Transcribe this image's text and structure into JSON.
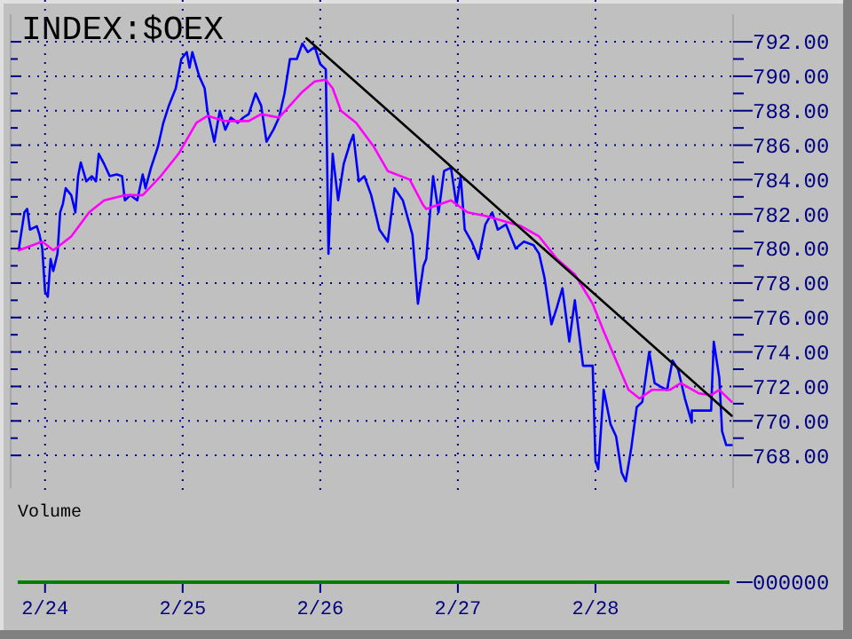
{
  "chart_data": [
    {
      "type": "line",
      "title": "INDEX:$OEX",
      "xlim": [
        "--02-23T18:00",
        "--03-01"
      ],
      "ylim": [
        766.1,
        793.6
      ],
      "xticks": [
        {
          "value": "--02-24",
          "label": "2/24"
        },
        {
          "value": "--02-25",
          "label": "2/25"
        },
        {
          "value": "--02-26",
          "label": "2/26"
        },
        {
          "value": "--02-27",
          "label": "2/27"
        },
        {
          "value": "--02-28",
          "label": "2/28"
        }
      ],
      "yticks": [
        {
          "value": 768,
          "label": "768.00"
        },
        {
          "value": 769,
          "label": null
        },
        {
          "value": 770,
          "label": "770.00"
        },
        {
          "value": 771,
          "label": null
        },
        {
          "value": 772,
          "label": "772.00"
        },
        {
          "value": 773,
          "label": null
        },
        {
          "value": 774,
          "label": "774.00"
        },
        {
          "value": 775,
          "label": null
        },
        {
          "value": 776,
          "label": "776.00"
        },
        {
          "value": 777,
          "label": null
        },
        {
          "value": 778,
          "label": "778.00"
        },
        {
          "value": 779,
          "label": null
        },
        {
          "value": 780,
          "label": "780.00"
        },
        {
          "value": 781,
          "label": null
        },
        {
          "value": 782,
          "label": "782.00"
        },
        {
          "value": 783,
          "label": null
        },
        {
          "value": 784,
          "label": "784.00"
        },
        {
          "value": 785,
          "label": null
        },
        {
          "value": 786,
          "label": "786.00"
        },
        {
          "value": 787,
          "label": null
        },
        {
          "value": 788,
          "label": "788.00"
        },
        {
          "value": 789,
          "label": null
        },
        {
          "value": 790,
          "label": "790.00"
        },
        {
          "value": 791,
          "label": null
        },
        {
          "value": 792,
          "label": "792.00"
        }
      ],
      "grid": true,
      "series": [
        {
          "type": "line",
          "color": "#0000ff",
          "x": [
            "--02-23T19:26",
            "--02-23T20:24",
            "--02-23T20:53",
            "--02-23T21:22",
            "--02-23T22:34",
            "--02-23T23:02",
            "--02-23T23:31",
            "--02-24T00:00",
            "--02-24T00:29",
            "--02-24T00:58",
            "--02-24T01:26",
            "--02-24T02:10",
            "--02-24T02:38",
            "--02-24T03:07",
            "--02-24T03:36",
            "--02-24T04:34",
            "--02-24T05:17",
            "--02-24T05:46",
            "--02-24T06:14",
            "--02-24T07:12",
            "--02-24T08:10",
            "--02-24T08:53",
            "--02-24T09:22",
            "--02-24T10:19",
            "--02-24T11:17",
            "--02-24T12:29",
            "--02-24T13:26",
            "--02-24T13:55",
            "--02-24T14:53",
            "--02-24T16:05",
            "--02-24T17:02",
            "--02-24T17:31",
            "--02-24T18:29",
            "--02-24T19:41",
            "--02-24T20:38",
            "--02-24T21:36",
            "--02-24T22:48",
            "--02-24T23:46",
            "--02-25T00:43",
            "--02-25T01:12",
            "--02-25T01:41",
            "--02-25T02:53",
            "--02-25T03:50",
            "--02-25T04:19",
            "--02-25T05:31",
            "--02-25T06:29",
            "--02-25T07:26",
            "--02-25T08:24",
            "--02-25T09:36",
            "--02-25T10:34",
            "--02-25T11:31",
            "--02-25T12:43",
            "--02-25T13:41",
            "--02-25T14:38",
            "--02-25T15:50",
            "--02-25T16:48",
            "--02-25T17:46",
            "--02-25T18:43",
            "--02-25T19:55",
            "--02-25T20:53",
            "--02-25T21:50",
            "--02-25T23:02",
            "--02-26T00:00",
            "--02-26T00:58",
            "--02-26T01:26",
            "--02-26T02:10",
            "--02-26T03:07",
            "--02-26T04:05",
            "--02-26T05:17",
            "--02-26T05:46",
            "--02-26T06:43",
            "--02-26T07:41",
            "--02-26T08:53",
            "--02-26T10:19",
            "--02-26T11:46",
            "--02-26T12:58",
            "--02-26T14:24",
            "--02-26T16:05",
            "--02-26T17:02",
            "--02-26T18:00",
            "--02-26T18:29",
            "--02-26T19:41",
            "--02-26T20:38",
            "--02-26T21:36",
            "--02-26T22:48",
            "--02-26T23:46",
            "--02-27T00:29",
            "--02-27T01:12",
            "--02-27T02:24",
            "--02-27T03:36",
            "--02-27T04:48",
            "--02-27T06:00",
            "--02-27T06:58",
            "--02-27T08:24",
            "--02-27T10:05",
            "--02-27T11:31",
            "--02-27T13:12",
            "--02-27T14:10",
            "--02-27T15:07",
            "--02-27T16:19",
            "--02-27T17:17",
            "--02-27T18:14",
            "--02-27T19:26",
            "--02-27T20:24",
            "--02-27T21:50",
            "--02-27T23:31",
            "--02-28T00:00",
            "--02-28T00:29",
            "--02-28T01:26",
            "--02-28T02:38",
            "--02-28T03:36",
            "--02-28T04:34",
            "--02-28T05:17",
            "--02-28T06:14",
            "--02-28T07:12",
            "--02-28T08:10",
            "--02-28T09:22",
            "--02-28T10:19",
            "--02-28T11:17",
            "--02-28T12:29",
            "--02-28T13:26",
            "--02-28T14:24",
            "--02-28T15:36",
            "--02-28T16:48",
            "--02-28T16:48",
            "--02-28T20:10",
            "--02-28T20:38",
            "--02-28T21:36",
            "--02-28T22:05",
            "--02-28T22:48",
            "--02-28T23:46"
          ],
          "values": [
            780,
            782.1,
            782.3,
            781.1,
            781.3,
            780.8,
            780,
            777.5,
            777.2,
            779.4,
            778.7,
            779.7,
            782.1,
            782.6,
            783.5,
            783.1,
            782.1,
            784.2,
            785,
            783.9,
            784.2,
            783.9,
            785.5,
            784.9,
            784.2,
            784.3,
            784.2,
            782.8,
            783.1,
            782.8,
            784.3,
            783.5,
            784.7,
            785.9,
            787.3,
            788.3,
            789.3,
            791,
            791.4,
            790.5,
            791.4,
            790,
            789.3,
            788,
            786.2,
            788,
            786.9,
            787.6,
            787.3,
            787.6,
            787.8,
            789,
            788.3,
            786.2,
            786.9,
            787.6,
            789,
            791,
            791,
            791.9,
            791.4,
            791.7,
            790.7,
            790.4,
            779.7,
            785.5,
            782.8,
            784.9,
            786.2,
            786.6,
            783.9,
            784.2,
            783.1,
            781.1,
            780.4,
            783.5,
            782.8,
            780.8,
            776.8,
            779,
            779.4,
            784.2,
            782.1,
            784.5,
            784.7,
            782.5,
            784.2,
            781.1,
            780.4,
            779.4,
            781.4,
            782.1,
            781.1,
            781.4,
            780,
            780.4,
            780.2,
            779.7,
            778.3,
            775.6,
            776.6,
            777.7,
            774.6,
            777,
            773.2,
            773.2,
            767.7,
            767.2,
            771.8,
            769.8,
            769.1,
            767,
            766.5,
            768.4,
            770.8,
            771.1,
            774,
            772.2,
            772,
            771.8,
            773.5,
            773,
            771.3,
            769.9,
            770.6,
            770.6,
            774.6,
            772.5,
            769.4,
            768.6,
            768.6
          ]
        },
        {
          "type": "line",
          "color": "#ff00ff",
          "x": [
            "--02-23T19:26",
            "--02-23T23:31",
            "--02-24T01:26",
            "--02-24T04:34",
            "--02-24T07:41",
            "--02-24T10:19",
            "--02-24T13:55",
            "--02-24T17:02",
            "--02-24T20:10",
            "--02-24T23:17",
            "--02-25T02:24",
            "--02-25T04:19",
            "--02-25T07:26",
            "--02-25T11:31",
            "--02-25T13:41",
            "--02-25T16:48",
            "--02-25T18:43",
            "--02-25T20:53",
            "--02-25T23:02",
            "--02-26T00:58",
            "--02-26T02:10",
            "--02-26T03:36",
            "--02-26T06:14",
            "--02-26T09:22",
            "--02-26T11:46",
            "--02-26T15:36",
            "--02-26T18:00",
            "--02-26T18:29",
            "--02-26T22:48",
            "--02-27T01:41",
            "--02-27T04:48",
            "--02-27T07:55",
            "--02-27T11:02",
            "--02-27T14:10",
            "--02-27T17:17",
            "--02-27T20:24",
            "--02-27T23:31",
            "--02-28T01:26",
            "--02-28T03:36",
            "--02-28T05:46",
            "--02-28T07:41",
            "--02-28T09:50",
            "--02-28T12:58",
            "--02-28T14:53",
            "--02-28T18:00",
            "--02-28T20:10",
            "--02-28T21:36",
            "--02-28T23:46"
          ],
          "values": [
            779.9,
            780.4,
            779.9,
            780.7,
            782.1,
            782.8,
            783.1,
            783.1,
            784.2,
            785.5,
            787.3,
            787.7,
            787.4,
            787.4,
            787.8,
            787.6,
            788.3,
            789.1,
            789.7,
            789.8,
            789.3,
            788,
            787.3,
            785.9,
            784.5,
            784,
            782.5,
            782.3,
            782.8,
            782.1,
            781.9,
            781.6,
            781.3,
            780.7,
            779.4,
            778.5,
            776.8,
            775.2,
            773.5,
            771.8,
            771.3,
            771.8,
            771.8,
            772.2,
            771.6,
            771.5,
            771.8,
            771.1
          ]
        },
        {
          "type": "line",
          "color": "#000000",
          "x": [
            "--02-25T21:36",
            "--02-28T23:46"
          ],
          "values": [
            792.2,
            770.3
          ]
        }
      ]
    },
    {
      "type": "other",
      "title": "Volume",
      "annotations": [
        "000000"
      ]
    }
  ]
}
